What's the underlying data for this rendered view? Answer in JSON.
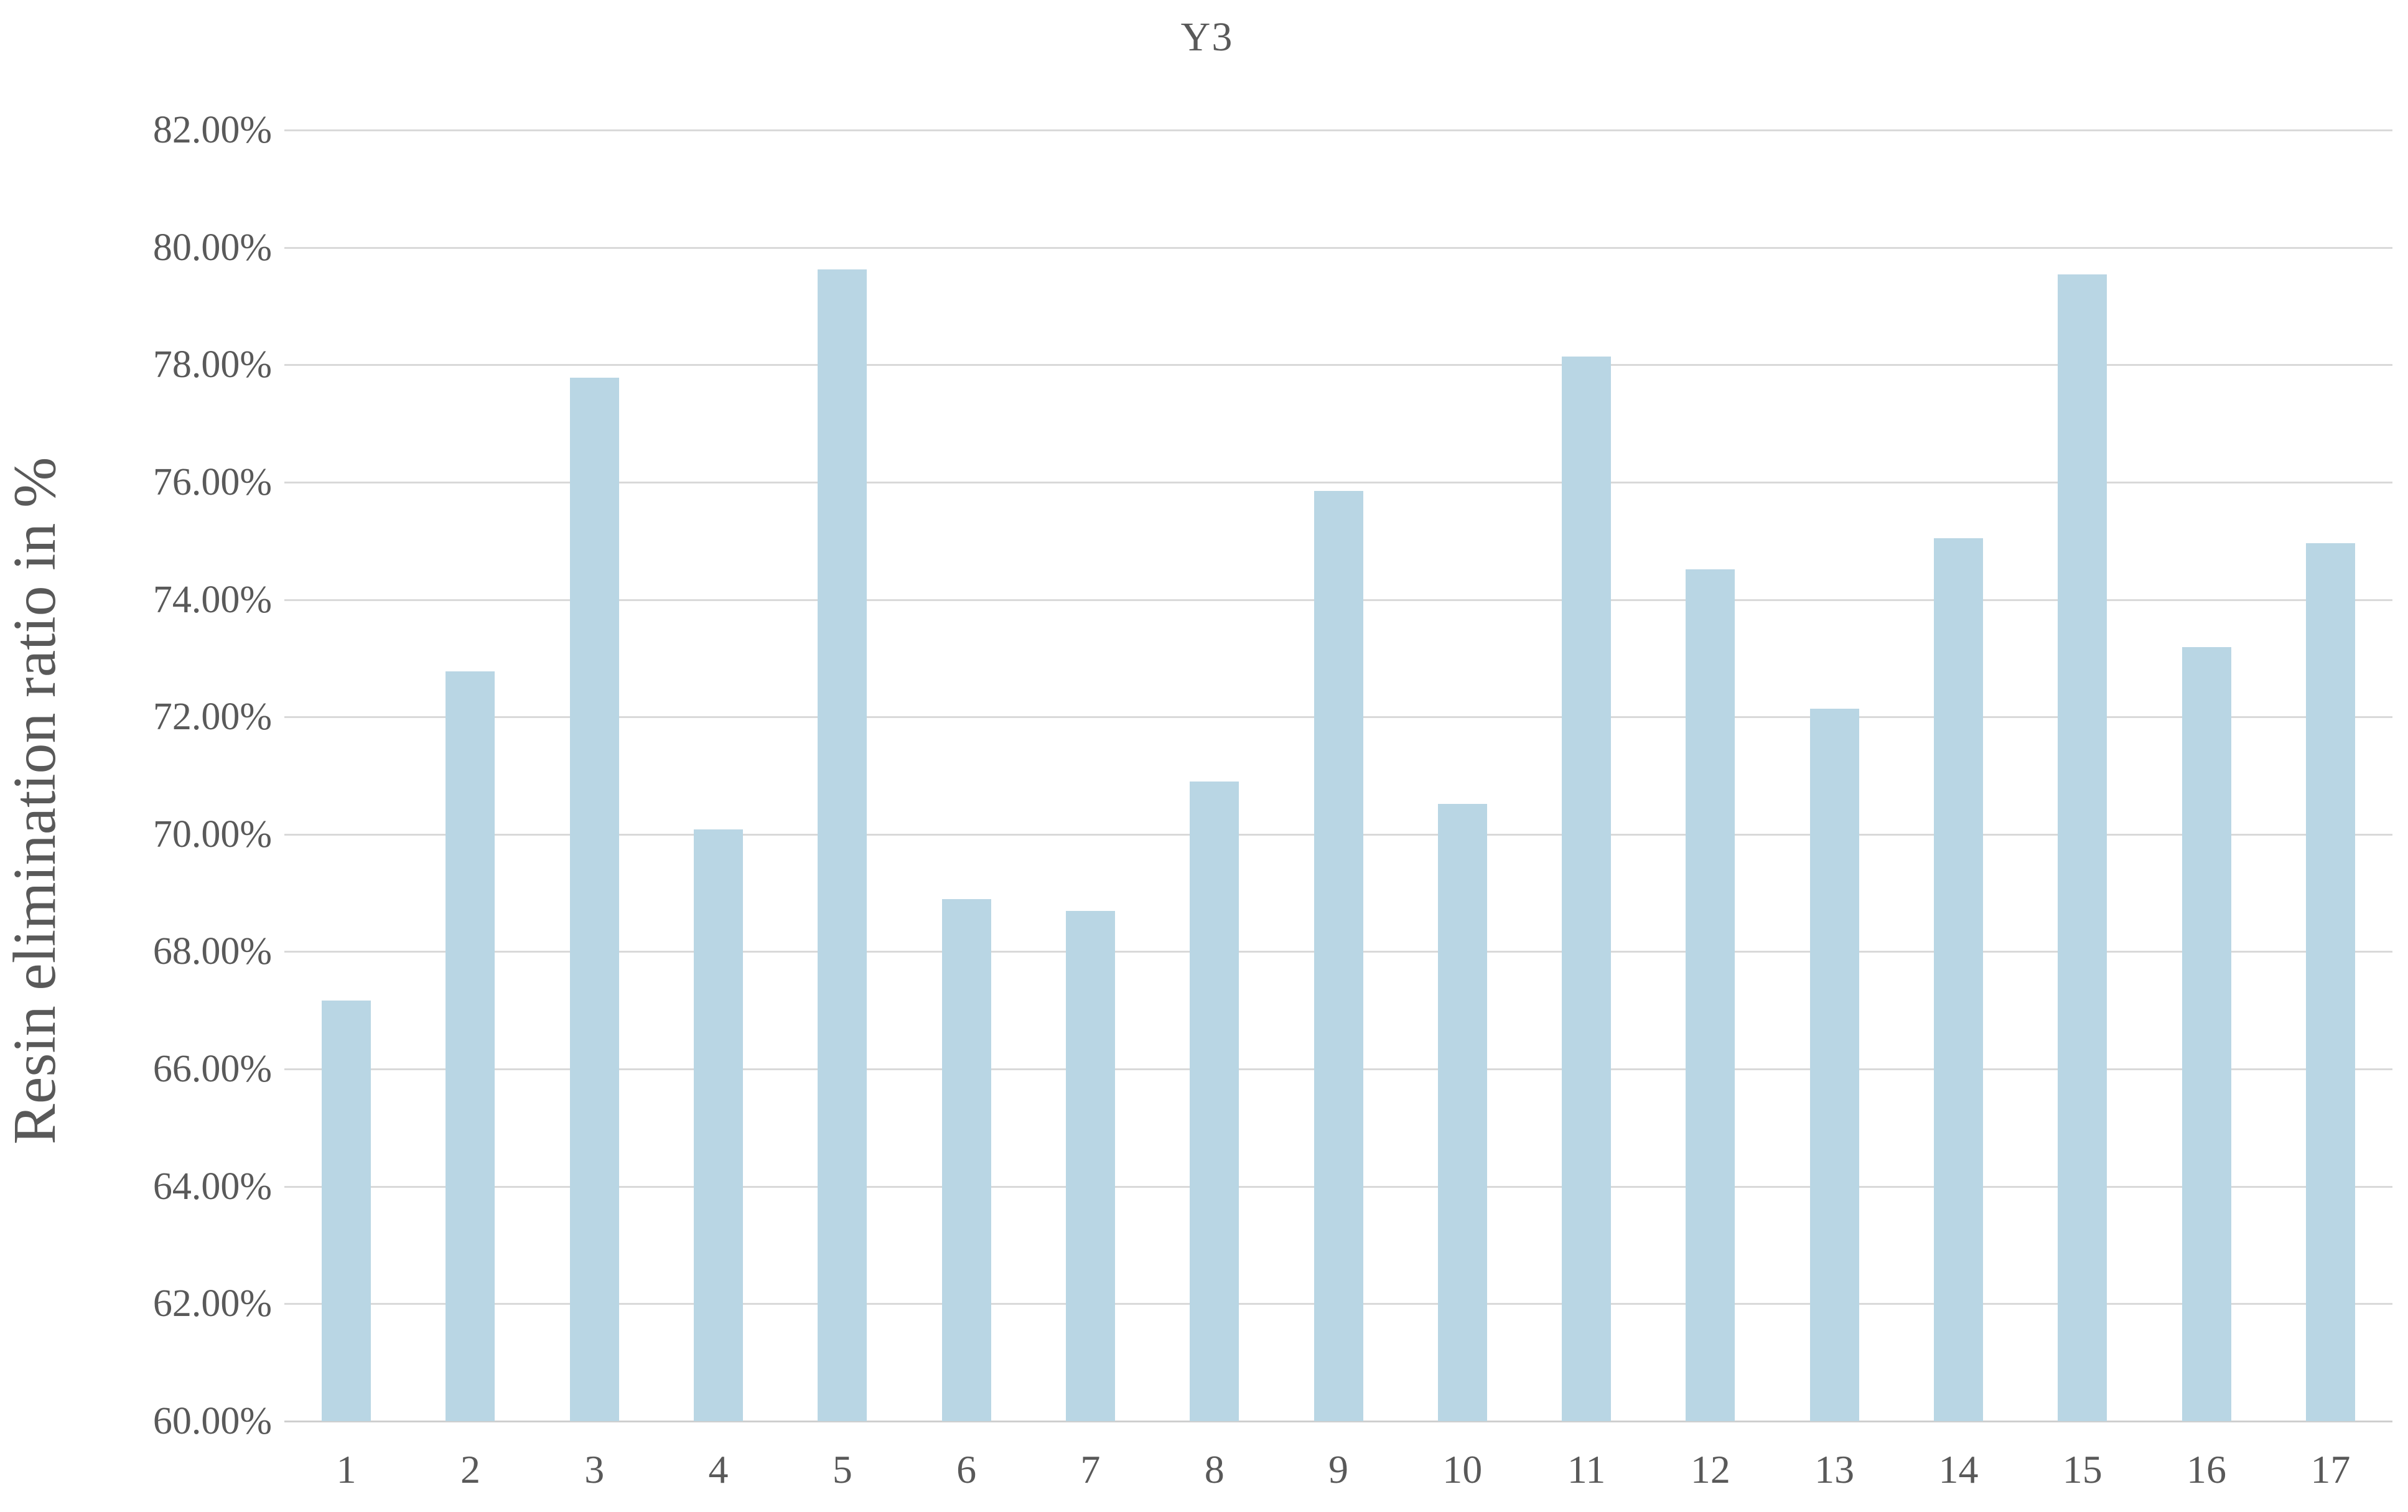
{
  "chart_data": {
    "type": "bar",
    "title": "Y3",
    "ylabel": "Resin elimination ratio in %",
    "xlabel": "",
    "categories": [
      "1",
      "2",
      "3",
      "4",
      "5",
      "6",
      "7",
      "8",
      "9",
      "10",
      "11",
      "12",
      "13",
      "14",
      "15",
      "16",
      "17"
    ],
    "values": [
      67.17,
      72.78,
      77.78,
      70.08,
      79.63,
      68.9,
      68.69,
      70.9,
      75.85,
      70.52,
      78.14,
      74.52,
      72.14,
      75.04,
      79.54,
      73.19,
      74.96
    ],
    "series_name": "Y3",
    "ylim": [
      60,
      82
    ],
    "ytick_step": 2,
    "ytick_labels": [
      "82.00%",
      "80.00%",
      "78.00%",
      "76.00%",
      "74.00%",
      "72.00%",
      "70.00%",
      "68.00%",
      "66.00%",
      "64.00%",
      "62.00%",
      "60.00%"
    ],
    "grid": true,
    "legend": false,
    "bar_color": "#b9d6e4",
    "gridline_color": "#d9d9d9",
    "text_color": "#595959"
  }
}
